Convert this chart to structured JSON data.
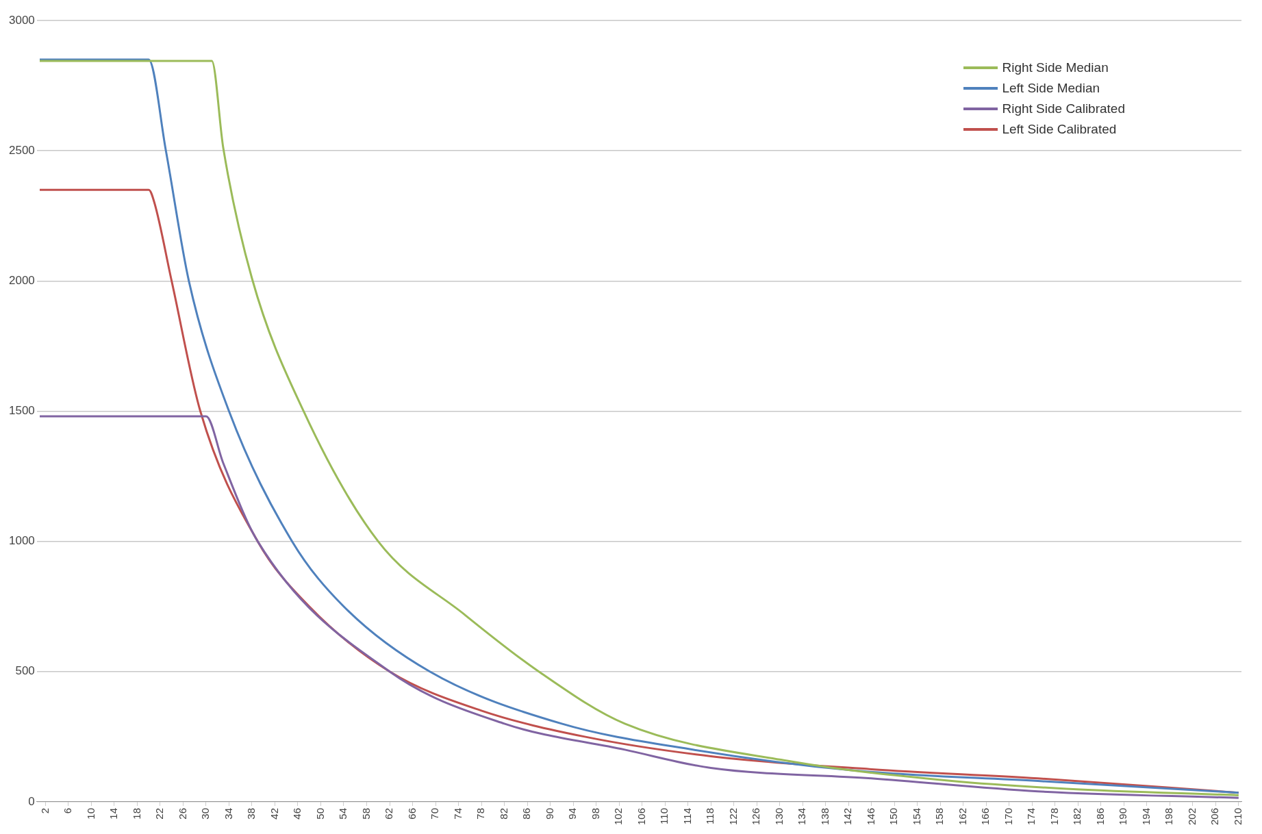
{
  "chart_data": {
    "type": "line",
    "xlim": [
      0.5,
      210.5
    ],
    "ylim": [
      0,
      3000
    ],
    "xticks": [
      2,
      6,
      10,
      14,
      18,
      22,
      26,
      30,
      34,
      38,
      42,
      46,
      50,
      54,
      58,
      62,
      66,
      70,
      74,
      78,
      82,
      86,
      90,
      94,
      98,
      102,
      106,
      110,
      114,
      118,
      122,
      126,
      130,
      134,
      138,
      142,
      146,
      150,
      154,
      158,
      162,
      166,
      170,
      174,
      178,
      182,
      186,
      190,
      194,
      198,
      202,
      206,
      210
    ],
    "yticks": [
      0,
      500,
      1000,
      1500,
      2000,
      2500,
      3000
    ],
    "grid": "y",
    "legend": "top right",
    "marker": "none",
    "line_style": "solid",
    "series": [
      {
        "name": "Right Side  Median",
        "color": "#9bbb59",
        "x": [
          1,
          31,
          33,
          38,
          47,
          60,
          75,
          88,
          103,
          132,
          160,
          180,
          210
        ],
        "values": [
          2845,
          2845,
          2510,
          2010,
          1500,
          1000,
          720,
          500,
          300,
          155,
          80,
          50,
          25
        ]
      },
      {
        "name": "Left Side  Median",
        "color": "#4f81bd",
        "x": [
          1,
          20,
          23,
          27,
          34,
          45,
          54,
          69,
          92,
          115,
          143,
          175,
          210
        ],
        "values": [
          2850,
          2850,
          2500,
          2000,
          1500,
          1000,
          750,
          500,
          300,
          200,
          120,
          80,
          35
        ]
      },
      {
        "name": "Right Side Calibrated",
        "color": "#8064a2",
        "x": [
          1,
          30,
          33,
          39,
          62,
          82,
          103,
          118,
          146,
          175,
          210
        ],
        "values": [
          1480,
          1480,
          1300,
          1000,
          500,
          300,
          200,
          130,
          90,
          40,
          15
        ]
      },
      {
        "name": "Left Side Calibrated",
        "color": "#c0504d",
        "x": [
          1,
          20,
          21,
          24,
          29,
          39,
          48,
          62,
          78,
          96,
          118,
          146,
          175,
          210
        ],
        "values": [
          2350,
          2350,
          2300,
          2000,
          1500,
          1000,
          750,
          500,
          350,
          250,
          175,
          125,
          90,
          35
        ]
      }
    ]
  }
}
